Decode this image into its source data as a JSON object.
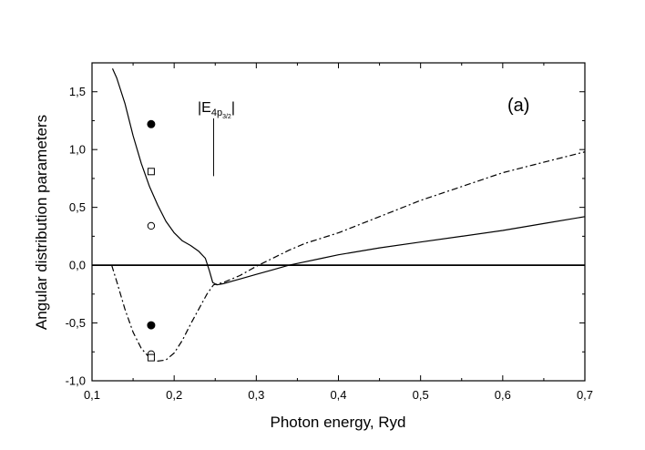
{
  "chart_data": {
    "type": "line",
    "panel_label": "(a)",
    "xlabel": "Photon energy, Ryd",
    "ylabel": "Angular distribution parameters",
    "xlim": [
      0.1,
      0.7
    ],
    "ylim": [
      -1.0,
      1.75
    ],
    "x_ticks": [
      0.1,
      0.2,
      0.3,
      0.4,
      0.5,
      0.6,
      0.7
    ],
    "x_tick_labels": [
      "0,1",
      "0,2",
      "0,3",
      "0,4",
      "0,5",
      "0,6",
      "0,7"
    ],
    "y_ticks": [
      -1.0,
      -0.5,
      0.0,
      0.5,
      1.0,
      1.5
    ],
    "y_tick_labels": [
      "-1,0",
      "-0,5",
      "0,0",
      "0,5",
      "1,0",
      "1,5"
    ],
    "grid": false,
    "annotation": {
      "text_main": "|E",
      "subscript": "4p",
      "subsubscript": "3/2",
      "text_end": "|",
      "x": 0.248,
      "line_y": [
        0.77,
        1.27
      ]
    },
    "zero_line": 0.0,
    "series": [
      {
        "style": "solid",
        "points": [
          [
            0.125,
            1.7
          ],
          [
            0.13,
            1.62
          ],
          [
            0.14,
            1.4
          ],
          [
            0.15,
            1.12
          ],
          [
            0.16,
            0.88
          ],
          [
            0.17,
            0.68
          ],
          [
            0.18,
            0.52
          ],
          [
            0.19,
            0.38
          ],
          [
            0.2,
            0.28
          ],
          [
            0.21,
            0.21
          ],
          [
            0.22,
            0.17
          ],
          [
            0.23,
            0.12
          ],
          [
            0.238,
            0.06
          ],
          [
            0.243,
            -0.05
          ],
          [
            0.247,
            -0.15
          ],
          [
            0.252,
            -0.17
          ],
          [
            0.26,
            -0.16
          ],
          [
            0.28,
            -0.12
          ],
          [
            0.3,
            -0.08
          ],
          [
            0.32,
            -0.04
          ],
          [
            0.34,
            0.0
          ],
          [
            0.36,
            0.03
          ],
          [
            0.38,
            0.06
          ],
          [
            0.4,
            0.09
          ],
          [
            0.45,
            0.15
          ],
          [
            0.5,
            0.2
          ],
          [
            0.55,
            0.25
          ],
          [
            0.6,
            0.3
          ],
          [
            0.65,
            0.36
          ],
          [
            0.7,
            0.42
          ]
        ]
      },
      {
        "style": "dash-dot",
        "points": [
          [
            0.124,
            0.0
          ],
          [
            0.13,
            -0.14
          ],
          [
            0.14,
            -0.38
          ],
          [
            0.15,
            -0.58
          ],
          [
            0.16,
            -0.72
          ],
          [
            0.17,
            -0.8
          ],
          [
            0.18,
            -0.83
          ],
          [
            0.19,
            -0.82
          ],
          [
            0.2,
            -0.76
          ],
          [
            0.21,
            -0.65
          ],
          [
            0.22,
            -0.51
          ],
          [
            0.23,
            -0.38
          ],
          [
            0.24,
            -0.25
          ],
          [
            0.248,
            -0.17
          ],
          [
            0.26,
            -0.15
          ],
          [
            0.28,
            -0.09
          ],
          [
            0.3,
            -0.01
          ],
          [
            0.32,
            0.06
          ],
          [
            0.34,
            0.13
          ],
          [
            0.36,
            0.19
          ],
          [
            0.4,
            0.28
          ],
          [
            0.45,
            0.42
          ],
          [
            0.5,
            0.56
          ],
          [
            0.55,
            0.68
          ],
          [
            0.6,
            0.8
          ],
          [
            0.65,
            0.89
          ],
          [
            0.7,
            0.98
          ]
        ]
      }
    ],
    "markers": [
      {
        "x": 0.172,
        "y": 1.22,
        "shape": "filled-circle"
      },
      {
        "x": 0.172,
        "y": 0.81,
        "shape": "open-square"
      },
      {
        "x": 0.172,
        "y": 0.34,
        "shape": "open-circle"
      },
      {
        "x": 0.172,
        "y": -0.52,
        "shape": "filled-circle"
      },
      {
        "x": 0.172,
        "y": -0.77,
        "shape": "open-circle"
      },
      {
        "x": 0.172,
        "y": -0.8,
        "shape": "open-square"
      }
    ]
  }
}
